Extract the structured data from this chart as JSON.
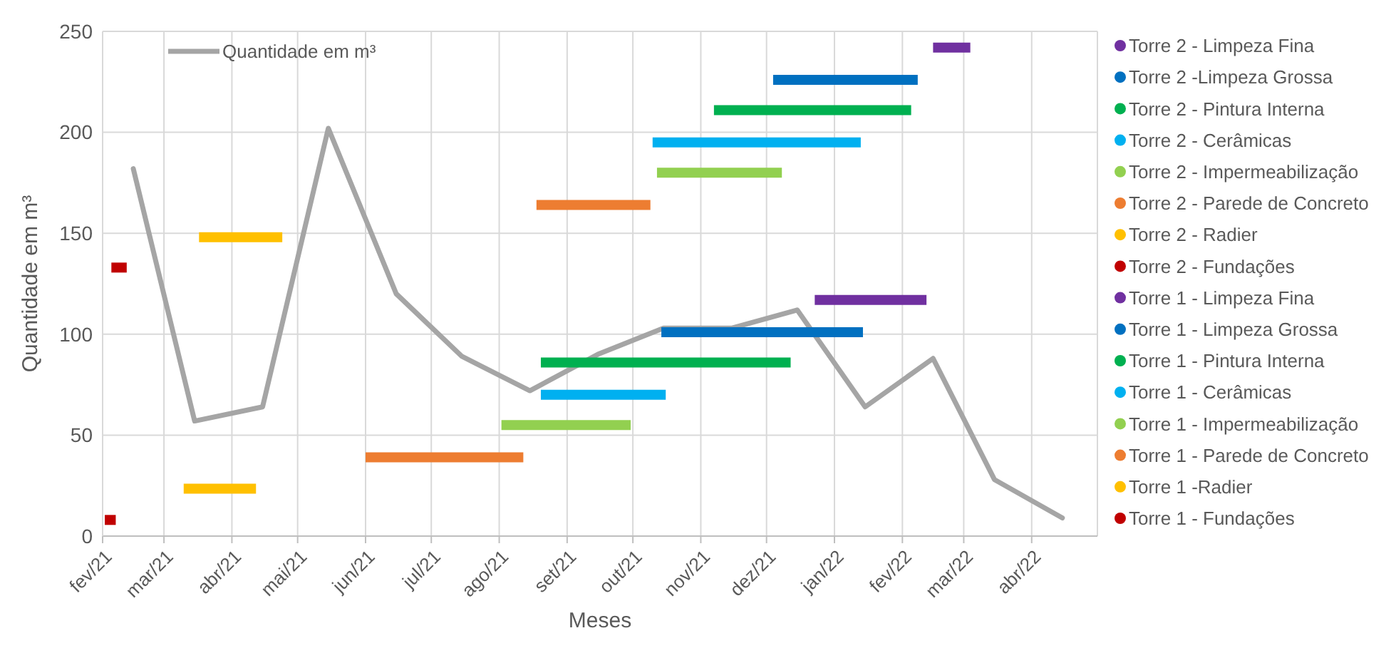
{
  "chart_data": {
    "type": "line",
    "xlabel": "Meses",
    "ylabel": "Quantidade em m³",
    "ylim": [
      0,
      250
    ],
    "yticks": [
      0,
      50,
      100,
      150,
      200,
      250
    ],
    "xlim": [
      "2021-02-01",
      "2022-05-01"
    ],
    "xticks": [
      {
        "value": "2021-02-01",
        "label": "fev/21"
      },
      {
        "value": "2021-03-01",
        "label": "mar/21"
      },
      {
        "value": "2021-04-01",
        "label": "abr/21"
      },
      {
        "value": "2021-05-01",
        "label": "mai/21"
      },
      {
        "value": "2021-06-01",
        "label": "jun/21"
      },
      {
        "value": "2021-07-01",
        "label": "jul/21"
      },
      {
        "value": "2021-08-01",
        "label": "ago/21"
      },
      {
        "value": "2021-09-01",
        "label": "set/21"
      },
      {
        "value": "2021-10-01",
        "label": "out/21"
      },
      {
        "value": "2021-11-01",
        "label": "nov/21"
      },
      {
        "value": "2021-12-01",
        "label": "dez/21"
      },
      {
        "value": "2022-01-01",
        "label": "jan/22"
      },
      {
        "value": "2022-02-01",
        "label": "fev/22"
      },
      {
        "value": "2022-03-01",
        "label": "mar/22"
      },
      {
        "value": "2022-04-01",
        "label": "abr/22"
      }
    ],
    "grid": true,
    "legend": "right",
    "line_style": "solid",
    "series": [
      {
        "name": "Quantidade em m³",
        "color": "#a5a5a5",
        "x": [
          "2021-02-15",
          "2021-03-15",
          "2021-04-15",
          "2021-05-15",
          "2021-06-15",
          "2021-07-15",
          "2021-08-15",
          "2021-09-15",
          "2021-10-15",
          "2021-11-15",
          "2021-12-15",
          "2022-01-15",
          "2022-02-15",
          "2022-03-15",
          "2022-04-15"
        ],
        "values": [
          182,
          57,
          64,
          202,
          120,
          89,
          72,
          90,
          103,
          103,
          112,
          64,
          88,
          28,
          9
        ]
      },
      {
        "name": "Torre 2 - Limpeza Fina",
        "color": "#7030a0",
        "x": [
          "2022-02-15",
          "2022-03-04"
        ],
        "values": [
          242,
          242
        ]
      },
      {
        "name": "Torre 2 -Limpeza Grossa",
        "color": "#0070c0",
        "x": [
          "2021-12-04",
          "2022-02-08"
        ],
        "values": [
          226,
          226
        ]
      },
      {
        "name": "Torre 2 - Pintura Interna",
        "color": "#00b050",
        "x": [
          "2021-11-07",
          "2022-02-05"
        ],
        "values": [
          211,
          211
        ]
      },
      {
        "name": "Torre 2 - Cerâmicas",
        "color": "#00b0f0",
        "x": [
          "2021-10-10",
          "2022-01-13"
        ],
        "values": [
          195,
          195
        ]
      },
      {
        "name": "Torre 2 - Impermeabilização",
        "color": "#92d050",
        "x": [
          "2021-10-12",
          "2021-12-08"
        ],
        "values": [
          180,
          180
        ]
      },
      {
        "name": "Torre 2 - Parede de Concreto",
        "color": "#ed7d31",
        "x": [
          "2021-08-18",
          "2021-10-09"
        ],
        "values": [
          164,
          164
        ]
      },
      {
        "name": "Torre 2 - Radier",
        "color": "#ffc000",
        "x": [
          "2021-03-17",
          "2021-04-24"
        ],
        "values": [
          148,
          148
        ]
      },
      {
        "name": "Torre 2 - Fundações",
        "color": "#c00000",
        "x": [
          "2021-02-05",
          "2021-02-12"
        ],
        "values": [
          133,
          133
        ]
      },
      {
        "name": "Torre 1 - Limpeza Fina",
        "color": "#7030a0",
        "x": [
          "2021-12-23",
          "2022-02-12"
        ],
        "values": [
          117,
          117
        ]
      },
      {
        "name": "Torre 1 - Limpeza Grossa",
        "color": "#0070c0",
        "x": [
          "2021-10-14",
          "2022-01-14"
        ],
        "values": [
          101,
          101
        ]
      },
      {
        "name": "Torre 1 - Pintura Interna",
        "color": "#00b050",
        "x": [
          "2021-08-20",
          "2021-12-12"
        ],
        "values": [
          86,
          86
        ]
      },
      {
        "name": "Torre 1 - Cerâmicas",
        "color": "#00b0f0",
        "x": [
          "2021-08-20",
          "2021-10-16"
        ],
        "values": [
          70,
          70
        ]
      },
      {
        "name": "Torre 1 - Impermeabilização",
        "color": "#92d050",
        "x": [
          "2021-08-02",
          "2021-09-30"
        ],
        "values": [
          55,
          55
        ]
      },
      {
        "name": "Torre 1 - Parede de Concreto",
        "color": "#ed7d31",
        "x": [
          "2021-06-01",
          "2021-08-12"
        ],
        "values": [
          39,
          39
        ]
      },
      {
        "name": "Torre 1 -Radier",
        "color": "#ffc000",
        "x": [
          "2021-03-10",
          "2021-04-12"
        ],
        "values": [
          23.5,
          23.5
        ]
      },
      {
        "name": "Torre 1 - Fundações",
        "color": "#c00000",
        "x": [
          "2021-02-02",
          "2021-02-07"
        ],
        "values": [
          8,
          8
        ]
      }
    ]
  }
}
